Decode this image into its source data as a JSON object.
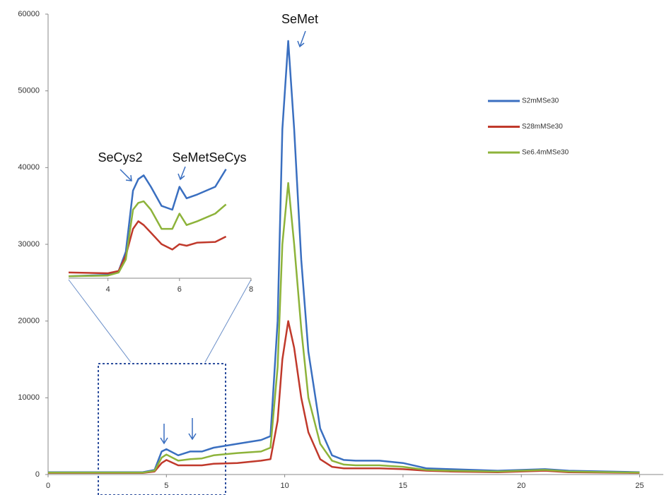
{
  "chart_data": [
    {
      "type": "line",
      "x": [
        0,
        2,
        4,
        4.5,
        4.8,
        5,
        5.5,
        6,
        6.5,
        7,
        8,
        9,
        9.4,
        9.7,
        9.9,
        10.15,
        10.4,
        10.7,
        11,
        11.5,
        12,
        12.5,
        13,
        14,
        15,
        16,
        17,
        19,
        21,
        22,
        25
      ],
      "series": [
        {
          "name": "S2mMSe30",
          "color": "#3a6fc0",
          "values": [
            300,
            300,
            300,
            600,
            3000,
            3300,
            2500,
            3000,
            3000,
            3500,
            4000,
            4500,
            5000,
            20000,
            45000,
            56500,
            45000,
            28000,
            16000,
            6000,
            2500,
            1900,
            1800,
            1800,
            1500,
            800,
            700,
            500,
            700,
            500,
            300
          ]
        },
        {
          "name": "S28mMSe30",
          "color": "#c0392b",
          "values": [
            200,
            200,
            200,
            400,
            1500,
            1900,
            1200,
            1200,
            1200,
            1400,
            1500,
            1800,
            2000,
            7000,
            15000,
            20000,
            16500,
            10000,
            5500,
            2000,
            1000,
            800,
            800,
            800,
            700,
            500,
            400,
            300,
            500,
            300,
            200
          ]
        },
        {
          "name": "Se6.4mMSe30",
          "color": "#8db33a",
          "values": [
            250,
            250,
            250,
            500,
            2200,
            2600,
            1800,
            2000,
            2100,
            2500,
            2800,
            3000,
            3500,
            14000,
            30000,
            38000,
            30000,
            19000,
            10000,
            4000,
            1800,
            1300,
            1200,
            1200,
            1000,
            600,
            500,
            400,
            600,
            400,
            250
          ]
        }
      ],
      "xlim": [
        0,
        26
      ],
      "xticks": [
        0,
        5,
        10,
        15,
        20,
        25
      ],
      "ylim": [
        0,
        60000
      ],
      "yticks": [
        0,
        10000,
        20000,
        30000,
        40000,
        50000,
        60000
      ],
      "annotations": [
        "SeMet",
        "SeCys2",
        "SeMetSeCys"
      ]
    },
    {
      "type": "line",
      "x": [
        2.9,
        4,
        4.3,
        4.5,
        4.7,
        4.85,
        5,
        5.2,
        5.5,
        5.8,
        6,
        6.2,
        6.5,
        7,
        7.3
      ],
      "series": [
        {
          "color": "#3a6fc0",
          "values": [
            25800,
            26000,
            26500,
            29000,
            37000,
            38500,
            39000,
            37500,
            35000,
            34500,
            37500,
            36000,
            36500,
            37500,
            39800
          ]
        },
        {
          "color": "#c0392b",
          "values": [
            26300,
            26200,
            26500,
            28500,
            32000,
            33000,
            32500,
            31500,
            30000,
            29300,
            30000,
            29800,
            30200,
            30300,
            31000
          ]
        },
        {
          "color": "#8db33a",
          "values": [
            25800,
            25900,
            26300,
            28000,
            34500,
            35400,
            35600,
            34500,
            32000,
            32000,
            34000,
            32500,
            33000,
            34000,
            35200
          ]
        }
      ],
      "xlim": [
        2.9,
        8
      ],
      "xticks": [
        4,
        6,
        8
      ],
      "ylim": [
        25000,
        40500
      ]
    }
  ]
}
